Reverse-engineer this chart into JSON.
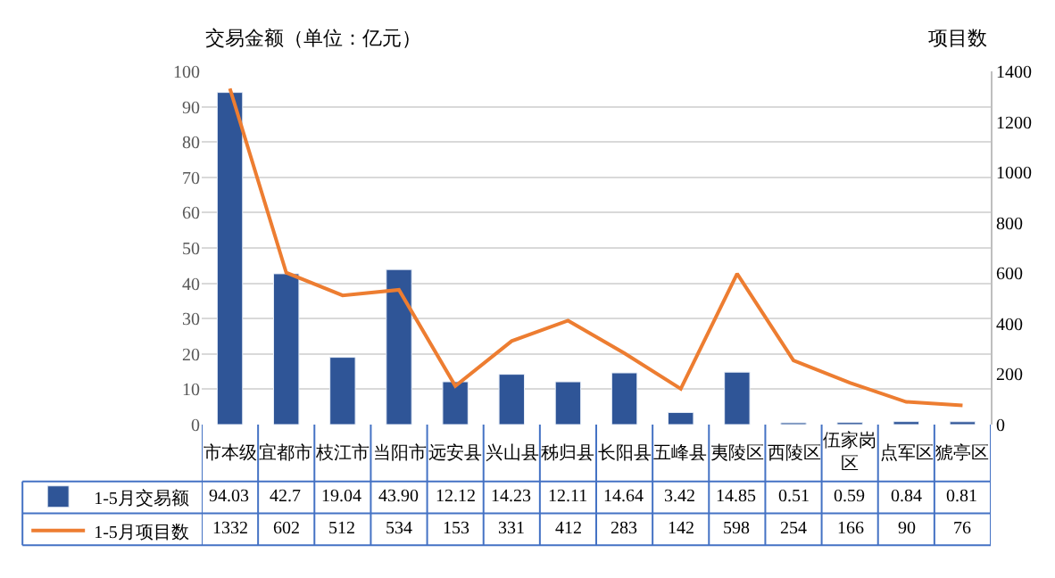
{
  "chart_data": {
    "type": "bar",
    "ylabel": "交易金额（单位：亿元）",
    "y2label": "项目数",
    "categories": [
      "市本级",
      "宜都市",
      "枝江市",
      "当阳市",
      "远安县",
      "兴山县",
      "秭归县",
      "长阳县",
      "五峰县",
      "夷陵区",
      "西陵区",
      "伍家岗区",
      "点军区",
      "猇亭区"
    ],
    "series": [
      {
        "name": "1-5月交易额",
        "color": "#2f5597",
        "values": [
          94.03,
          42.7,
          19.04,
          43.9,
          12.12,
          14.23,
          12.11,
          14.64,
          3.42,
          14.85,
          0.51,
          0.59,
          0.84,
          0.81
        ],
        "value_labels": [
          "94.03",
          "42.7",
          "19.04",
          "43.90",
          "12.12",
          "14.23",
          "12.11",
          "14.64",
          "3.42",
          "14.85",
          "0.51",
          "0.59",
          "0.84",
          "0.81"
        ]
      },
      {
        "name": "1-5月项目数",
        "type": "line",
        "axis": "y2",
        "color": "#ed7d31",
        "values": [
          1332,
          602,
          512,
          534,
          153,
          331,
          412,
          283,
          142,
          598,
          254,
          166,
          90,
          76
        ],
        "value_labels": [
          "1332",
          "602",
          "512",
          "534",
          "153",
          "331",
          "412",
          "283",
          "142",
          "598",
          "254",
          "166",
          "90",
          "76"
        ]
      }
    ],
    "ylim": [
      0,
      100
    ],
    "yticks": [
      0,
      10,
      20,
      30,
      40,
      50,
      60,
      70,
      80,
      90,
      100
    ],
    "y2lim": [
      0,
      1400
    ],
    "y2ticks": [
      0,
      200,
      400,
      600,
      800,
      1000,
      1200,
      1400
    ],
    "grid": "y",
    "legend": "bottom",
    "marker": "none",
    "line_style": "solid"
  }
}
